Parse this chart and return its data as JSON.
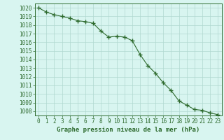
{
  "x": [
    0,
    1,
    2,
    3,
    4,
    5,
    6,
    7,
    8,
    9,
    10,
    11,
    12,
    13,
    14,
    15,
    16,
    17,
    18,
    19,
    20,
    21,
    22,
    23
  ],
  "y": [
    1020.0,
    1019.5,
    1019.2,
    1019.0,
    1018.8,
    1018.5,
    1018.4,
    1018.2,
    1017.3,
    1016.6,
    1016.7,
    1016.6,
    1016.2,
    1014.6,
    1013.3,
    1012.4,
    1011.3,
    1010.4,
    1009.2,
    1008.7,
    1008.2,
    1008.1,
    1007.8,
    1007.6
  ],
  "line_color": "#2d6a2d",
  "marker": "+",
  "bg_color": "#d8f5f0",
  "grid_color": "#b0d8d0",
  "xlabel": "Graphe pression niveau de la mer (hPa)",
  "xlabel_color": "#2d6a2d",
  "tick_color": "#2d6a2d",
  "spine_color": "#2d6a2d",
  "ylim": [
    1007.5,
    1020.5
  ],
  "xlim": [
    -0.5,
    23.5
  ],
  "yticks": [
    1008,
    1009,
    1010,
    1011,
    1012,
    1013,
    1014,
    1015,
    1016,
    1017,
    1018,
    1019,
    1020
  ],
  "xticks": [
    0,
    1,
    2,
    3,
    4,
    5,
    6,
    7,
    8,
    9,
    10,
    11,
    12,
    13,
    14,
    15,
    16,
    17,
    18,
    19,
    20,
    21,
    22,
    23
  ],
  "xtick_labels": [
    "0",
    "1",
    "2",
    "3",
    "4",
    "5",
    "6",
    "7",
    "8",
    "9",
    "10",
    "11",
    "12",
    "13",
    "14",
    "15",
    "16",
    "17",
    "18",
    "19",
    "20",
    "21",
    "22",
    "23"
  ],
  "tick_fontsize": 5.5,
  "xlabel_fontsize": 6.5,
  "linewidth": 0.8,
  "markersize": 4,
  "markeredgewidth": 1.0
}
